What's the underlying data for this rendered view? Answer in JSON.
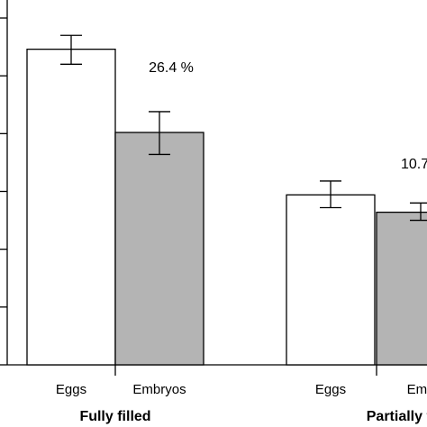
{
  "chart_data": {
    "type": "bar",
    "groups": [
      {
        "name": "Fully filled",
        "annotation": "26.4 %",
        "bars": [
          {
            "label": "Eggs",
            "value": 27.3,
            "err_low": 26.0,
            "err_high": 28.5,
            "color": "#ffffff"
          },
          {
            "label": "Embryos",
            "value": 20.1,
            "err_low": 18.2,
            "err_high": 21.9,
            "color": "#b4b4b4"
          }
        ]
      },
      {
        "name": "Partially fi",
        "annotation": "10.7",
        "bars": [
          {
            "label": "Eggs",
            "value": 14.7,
            "err_low": 13.6,
            "err_high": 15.9,
            "color": "#ffffff"
          },
          {
            "label": "Emb",
            "value": 13.2,
            "err_low": 12.5,
            "err_high": 14.0,
            "color": "#b4b4b4"
          }
        ]
      }
    ],
    "ylim": [
      0,
      30
    ],
    "ytick_step": 5,
    "ytick_labels_visible": false,
    "grid": false,
    "bar_edge_color": "#000000"
  }
}
